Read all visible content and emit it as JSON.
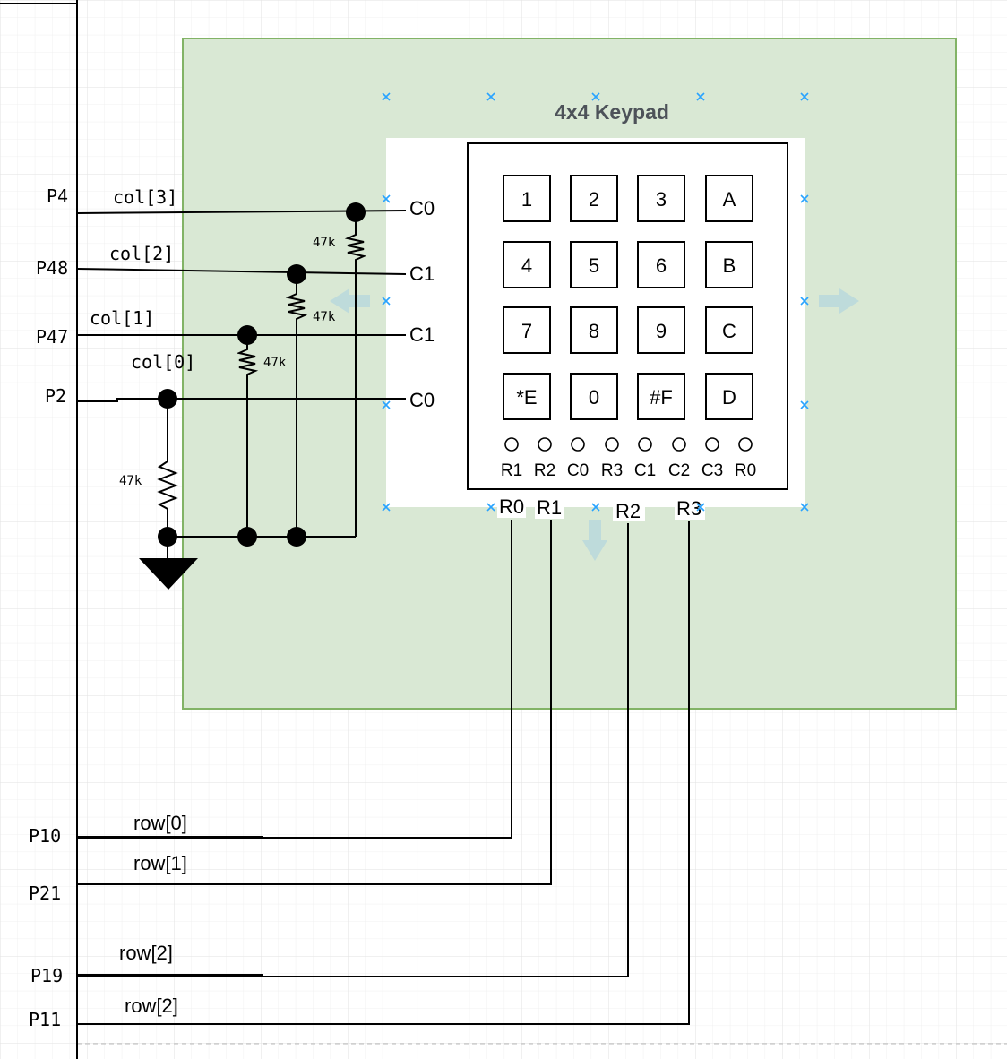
{
  "title": "4x4 Keypad",
  "colors": {
    "group_fill": "#d9e8d4",
    "group_border": "#82b366",
    "grid": "#e6e6e6",
    "handle": "#29a3ff",
    "arrow": "#b7d7dc"
  },
  "icons": {
    "ground": "ground-symbol",
    "handle": "selection-handle-x",
    "arrow": "connector-arrow"
  },
  "keys": [
    "1",
    "2",
    "3",
    "A",
    "4",
    "5",
    "6",
    "B",
    "7",
    "8",
    "9",
    "C",
    "*E",
    "0",
    "#F",
    "D"
  ],
  "pin_labels": [
    "R1",
    "R2",
    "C0",
    "R3",
    "C1",
    "C2",
    "C3",
    "R0"
  ],
  "left_ports": [
    {
      "pin": "P4",
      "net": "col[3]",
      "node": "C0"
    },
    {
      "pin": "P48",
      "net": "col[2]",
      "node": "C1"
    },
    {
      "pin": "P47",
      "net": "col[1]",
      "node": "C1"
    },
    {
      "pin": "P2",
      "net": "col[0]",
      "node": "C0"
    }
  ],
  "resistors": [
    "47k",
    "47k",
    "47k",
    "47k"
  ],
  "bottom_pins": [
    "R0",
    "R1",
    "R2",
    "R3"
  ],
  "row_ports": [
    {
      "pin": "P10",
      "net": "row[0]"
    },
    {
      "pin": "P21",
      "net": "row[1]"
    },
    {
      "pin": "P19",
      "net": "row[2]"
    },
    {
      "pin": "P11",
      "net": "row[2]"
    }
  ]
}
